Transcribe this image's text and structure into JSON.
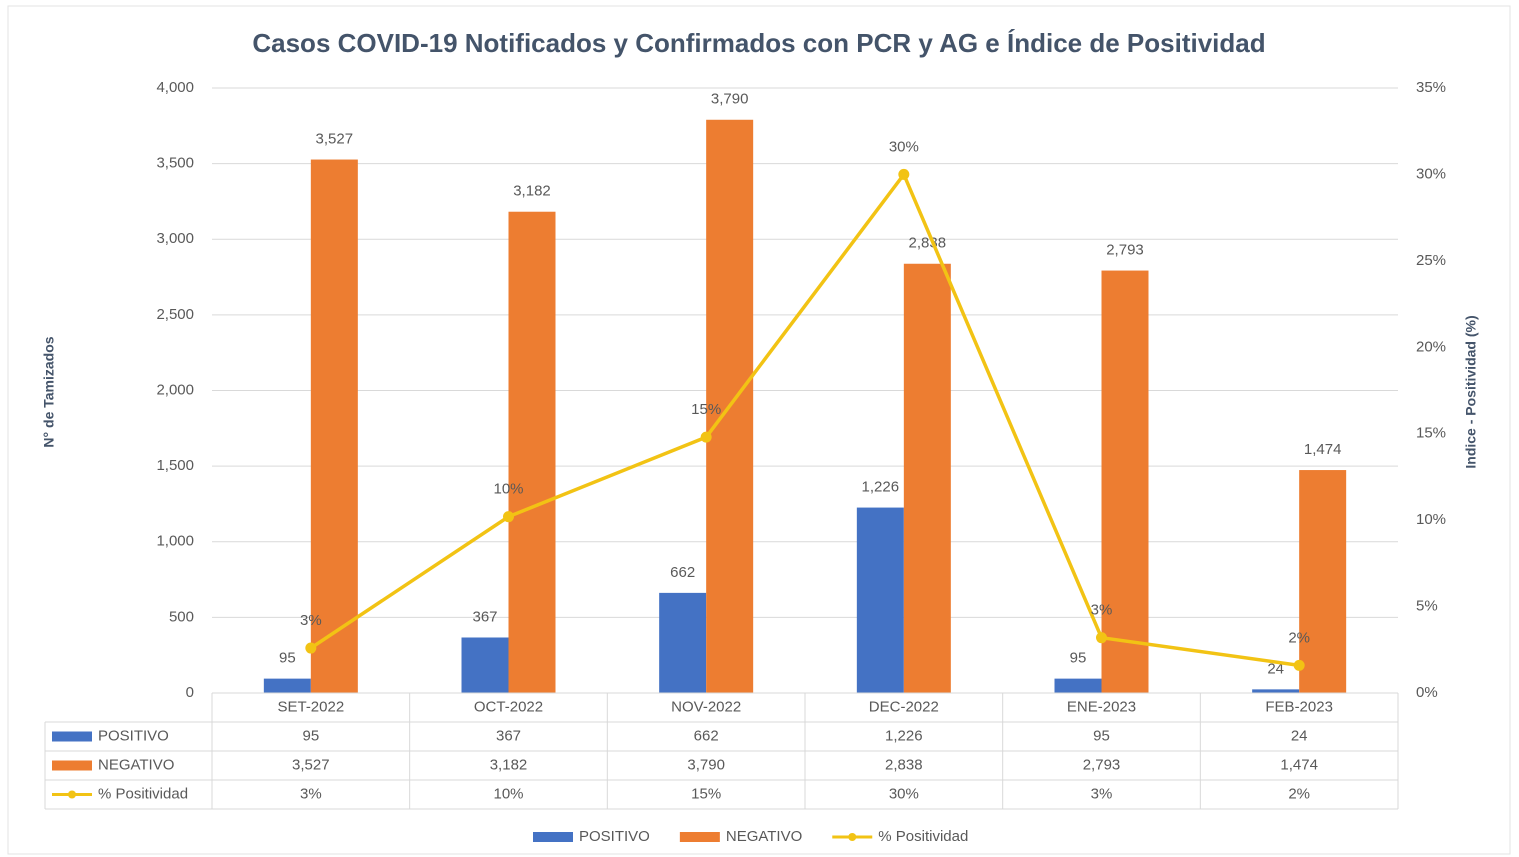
{
  "chart_data": {
    "type": "bar",
    "title": "Casos COVID-19 Notificados y Confirmados con PCR y AG e Índice de Positividad",
    "y_label": "N° de Tamizados",
    "y2_label": "Indice - Positividad (%)",
    "categories": [
      "SET-2022",
      "OCT-2022",
      "NOV-2022",
      "DEC-2022",
      "ENE-2023",
      "FEB-2023"
    ],
    "series": [
      {
        "name": "POSITIVO",
        "color": "#4472c4",
        "values": [
          95,
          367,
          662,
          1226,
          95,
          24
        ],
        "value_labels": [
          "95",
          "367",
          "662",
          "1,226",
          "95",
          "24"
        ]
      },
      {
        "name": "NEGATIVO",
        "color": "#ed7d31",
        "values": [
          3527,
          3182,
          3790,
          2838,
          2793,
          1474
        ],
        "value_labels": [
          "3,527",
          "3,182",
          "3,790",
          "2,838",
          "2,793",
          "1,474"
        ]
      },
      {
        "name": "% Positividad",
        "color": "#f2c314",
        "type": "line",
        "axis": "y2",
        "values": [
          2.6,
          10.2,
          14.8,
          30,
          3.2,
          1.6
        ],
        "value_labels": [
          "3%",
          "10%",
          "15%",
          "30%",
          "3%",
          "2%"
        ]
      }
    ],
    "ylim": [
      0,
      4000
    ],
    "yticks": [
      0,
      500,
      {
        "value": 1000,
        "label": "1,000"
      },
      {
        "value": 1500,
        "label": "1,500"
      },
      {
        "value": 2000,
        "label": "2,000"
      },
      {
        "value": 2500,
        "label": "2,500"
      },
      {
        "value": 3000,
        "label": "3,000"
      },
      {
        "value": 3500,
        "label": "3,500"
      },
      {
        "value": 4000,
        "label": "4,000"
      }
    ],
    "y2lim": [
      0,
      35
    ],
    "y2ticks": [
      {
        "value": 0,
        "label": "0%"
      },
      {
        "value": 5,
        "label": "5%"
      },
      {
        "value": 10,
        "label": "10%"
      },
      {
        "value": 15,
        "label": "15%"
      },
      {
        "value": 20,
        "label": "20%"
      },
      {
        "value": 25,
        "label": "25%"
      },
      {
        "value": 30,
        "label": "30%"
      },
      {
        "value": 35,
        "label": "35%"
      }
    ],
    "grid": true,
    "legend": "bottom",
    "data_table": true
  }
}
